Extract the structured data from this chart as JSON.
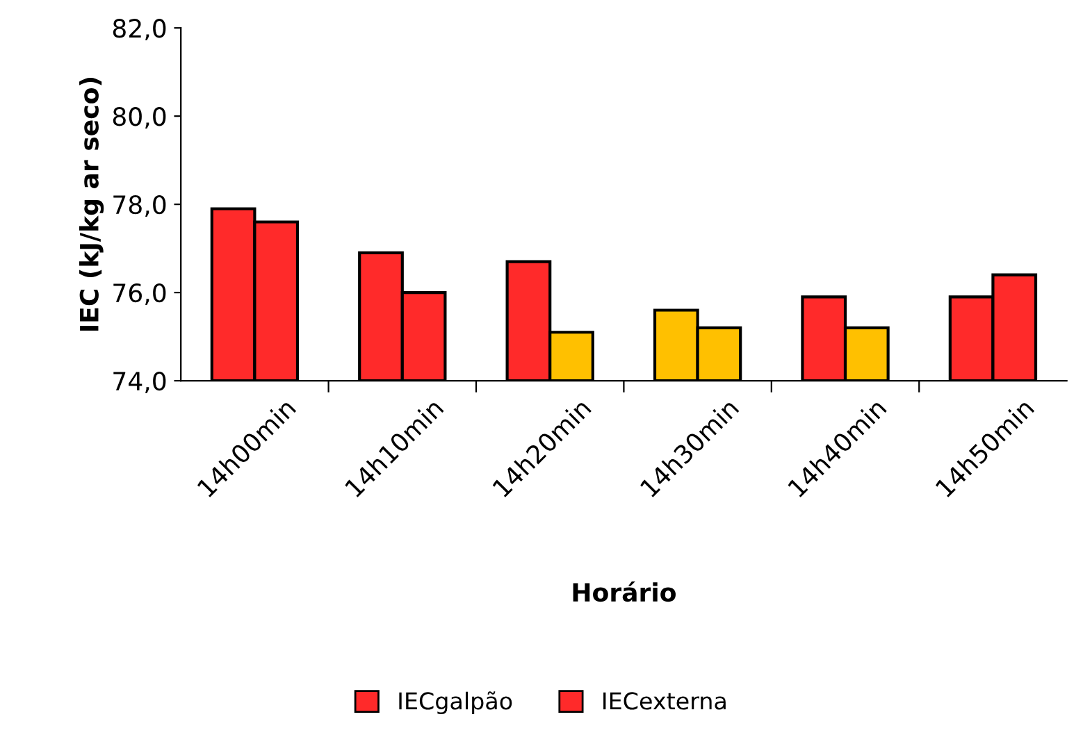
{
  "chart_data": {
    "type": "bar",
    "xlabel": "Horário",
    "ylabel": "IEC (kJ/kg ar seco)",
    "categories": [
      "14h00min",
      "14h10min",
      "14h20min",
      "14h30min",
      "14h40min",
      "14h50min"
    ],
    "series": [
      {
        "name": "IECgalpão",
        "colors": [
          "#ff2a2a",
          "#ff2a2a",
          "#ff2a2a",
          "#ffc000",
          "#ff2a2a",
          "#ff2a2a"
        ],
        "values": [
          77.9,
          76.9,
          76.7,
          75.6,
          75.9,
          75.9
        ]
      },
      {
        "name": "IECexterna",
        "colors": [
          "#ff2a2a",
          "#ff2a2a",
          "#ffc000",
          "#ffc000",
          "#ffc000",
          "#ff2a2a"
        ],
        "values": [
          77.6,
          76.0,
          75.1,
          75.2,
          75.2,
          76.4
        ]
      }
    ],
    "ylim": [
      74,
      82
    ],
    "yticks": [
      {
        "value": 74,
        "label": "74,0"
      },
      {
        "value": 76,
        "label": "76,0"
      },
      {
        "value": 78,
        "label": "78,0"
      },
      {
        "value": 80,
        "label": "80,0"
      },
      {
        "value": 82,
        "label": "82,0"
      }
    ],
    "grid": false,
    "legend": "bottom"
  }
}
